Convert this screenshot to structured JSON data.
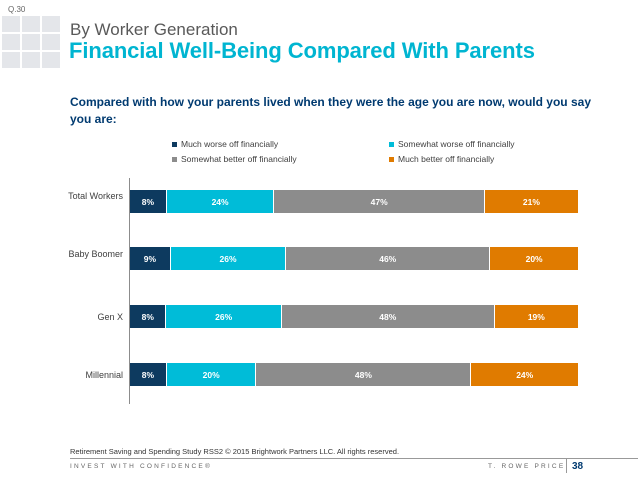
{
  "question_number": "Q.30",
  "subtitle": "By Worker Generation",
  "title": "Financial Well-Being Compared With Parents",
  "question": "Compared with how your parents lived when they were the age you are now, would you say you are:",
  "source": "Retirement Saving and Spending Study RSS2 © 2015 Brightwork Partners LLC. All rights reserved.",
  "footer": {
    "tagline": "INVEST WITH CONFIDENCE®",
    "brand": "T. ROWE PRICE",
    "page": "38"
  },
  "colors": {
    "accent": "#00b5d1",
    "navy": "#003a70"
  },
  "chart_data": {
    "type": "bar",
    "orientation": "horizontal",
    "stacked": true,
    "title": "Financial Well-Being Compared With Parents",
    "categories": [
      "Total Workers",
      "Baby Boomer",
      "Gen X",
      "Millennial"
    ],
    "series": [
      {
        "name": "Much worse off financially",
        "color": "#0d3a5f",
        "values": [
          8,
          9,
          8,
          8
        ],
        "labels": [
          "8%",
          "9%",
          "8%",
          "8%"
        ]
      },
      {
        "name": "Somewhat worse off financially",
        "color": "#00bcd8",
        "values": [
          24,
          26,
          26,
          20
        ],
        "labels": [
          "24%",
          "26%",
          "26%",
          "20%"
        ]
      },
      {
        "name": "Somewhat better off financially",
        "color": "#8c8c8c",
        "values": [
          47,
          46,
          48,
          48
        ],
        "labels": [
          "47%",
          "46%",
          "48%",
          "48%"
        ]
      },
      {
        "name": "Much better off financially",
        "color": "#e07b00",
        "values": [
          21,
          20,
          19,
          24
        ],
        "labels": [
          "21%",
          "20%",
          "19%",
          "24%"
        ]
      }
    ],
    "legend_position": "top"
  }
}
